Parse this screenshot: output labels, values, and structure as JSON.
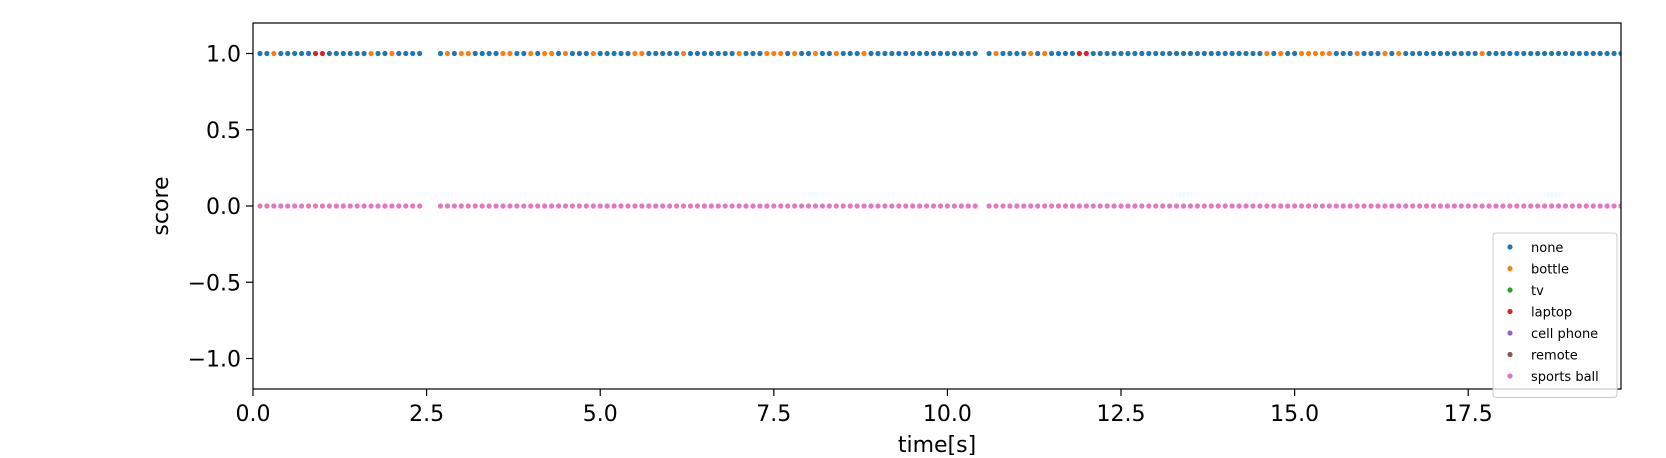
{
  "chart_data": {
    "type": "scatter",
    "title": "",
    "xlabel": "time[s]",
    "ylabel": "score",
    "xlim": [
      0,
      19.7
    ],
    "ylim": [
      -1.2,
      1.2
    ],
    "xticks": [
      0.0,
      2.5,
      5.0,
      7.5,
      10.0,
      12.5,
      15.0,
      17.5
    ],
    "xtick_labels": [
      "0.0",
      "2.5",
      "5.0",
      "7.5",
      "10.0",
      "12.5",
      "15.0",
      "17.5"
    ],
    "yticks": [
      1.0,
      0.5,
      0.0,
      -0.5,
      -1.0
    ],
    "ytick_labels": [
      "1.0",
      "0.5",
      "0.0",
      "−0.5",
      "−1.0"
    ],
    "grid": false,
    "legend_position": "lower-right",
    "sample_interval_s": 0.1,
    "gaps_s": [
      [
        2.4,
        2.7
      ],
      [
        10.4,
        10.6
      ]
    ],
    "series": [
      {
        "name": "none",
        "color": "#1f77b4"
      },
      {
        "name": "bottle",
        "color": "#ff7f0e",
        "x": [
          0.26,
          1.7,
          1.98,
          2.82,
          2.96,
          3.12,
          3.6,
          3.72,
          3.96,
          4.22,
          4.3,
          4.5,
          4.86,
          5.46,
          5.64,
          6.2,
          6.96,
          7.4,
          7.5,
          7.64,
          7.76,
          8.1,
          8.42,
          8.76,
          10.74,
          11.2,
          11.4,
          14.64,
          14.84,
          15.06,
          15.16,
          15.26,
          15.38,
          15.5,
          15.94,
          16.32,
          16.48,
          17.7
        ],
        "y_value": 1.0
      },
      {
        "name": "tv",
        "color": "#2ca02c"
      },
      {
        "name": "laptop",
        "color": "#d62728",
        "x": [
          0.86,
          0.98,
          11.92,
          12.04
        ],
        "y_value": 1.0
      },
      {
        "name": "cell phone",
        "color": "#9467bd"
      },
      {
        "name": "remote",
        "color": "#8c564b"
      },
      {
        "name": "sports ball",
        "color": "#e377c2",
        "y_value": 0.0,
        "note": "present at every sampled frame"
      }
    ]
  }
}
